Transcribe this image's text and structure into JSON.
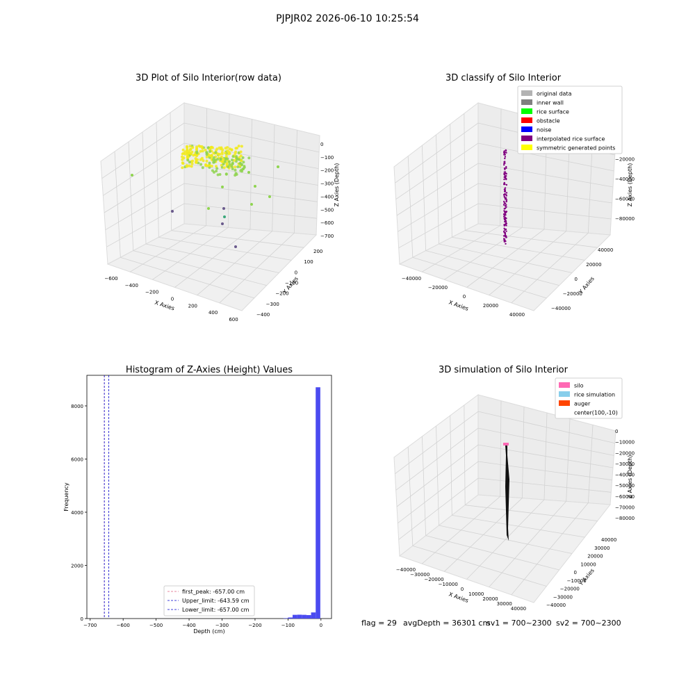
{
  "suptitle": "PJPJR02 2026-06-10 10:25:54",
  "footer": {
    "flag": "flag = 29",
    "avg": "avgDepth = 36301 cm",
    "sv1": "sv1 = 700~2300",
    "sv2": "sv2 = 700~2300"
  },
  "chart_data": [
    {
      "type": "scatter",
      "title": "3D Plot of Silo Interior(row data)",
      "xlabel": "X Axies",
      "ylabel": "Y Axies",
      "zlabel": "Z Axies (Depth)",
      "x_ticks": [
        "−600",
        "−400",
        "−200",
        "0",
        "200",
        "400",
        "600"
      ],
      "y_ticks": [
        "200",
        "100",
        "0",
        "−100",
        "−200",
        "−300",
        "−400"
      ],
      "z_ticks": [
        "0",
        "−100",
        "−200",
        "−300",
        "−400",
        "−500",
        "−600",
        "−700"
      ],
      "colors": {
        "high": "#f2ea1a",
        "mid": "#8fd44f",
        "low": "#3aa87a",
        "deep": "#6a5a8c"
      }
    },
    {
      "type": "scatter",
      "title": "3D classify of Silo Interior",
      "xlabel": "X Axies",
      "ylabel": "Y Axies",
      "zlabel": "Z Axies (Depth)",
      "x_ticks": [
        "−40000",
        "−20000",
        "0",
        "20000",
        "40000"
      ],
      "y_ticks": [
        "40000",
        "20000",
        "0",
        "−20000",
        "−40000"
      ],
      "z_ticks": [
        "0",
        "−20000",
        "−40000",
        "−60000",
        "−80000"
      ],
      "legend_position": "top-right",
      "legend": [
        {
          "label": "original data",
          "color": "#b3b3b3"
        },
        {
          "label": "inner wall",
          "color": "#808080"
        },
        {
          "label": "rice surface",
          "color": "#00ff00"
        },
        {
          "label": "obstacle",
          "color": "#ff0000"
        },
        {
          "label": "noise",
          "color": "#0000ff"
        },
        {
          "label": "interpolated rice surface",
          "color": "#800080"
        },
        {
          "label": "symmetric generated points",
          "color": "#ffff00"
        }
      ]
    },
    {
      "type": "bar",
      "title": "Histogram of Z-Axies (Height) Values",
      "xlabel": "Depth (cm)",
      "ylabel": "Frequency",
      "xlim": [
        -710,
        32
      ],
      "ylim": [
        0,
        9150
      ],
      "x_ticks": [
        -700,
        -600,
        -500,
        -400,
        -300,
        -200,
        -100,
        0
      ],
      "x_tick_labels": [
        "−700",
        "−600",
        "−500",
        "−400",
        "−300",
        "−200",
        "−100",
        "0"
      ],
      "y_ticks": [
        0,
        2000,
        4000,
        6000,
        8000
      ],
      "bar_color": "#4b4bf0",
      "bins": [
        {
          "x0": -114,
          "x1": -100,
          "count": 15
        },
        {
          "x0": -100,
          "x1": -86,
          "count": 40
        },
        {
          "x0": -86,
          "x1": -72,
          "count": 140
        },
        {
          "x0": -72,
          "x1": -58,
          "count": 145
        },
        {
          "x0": -58,
          "x1": -44,
          "count": 140
        },
        {
          "x0": -44,
          "x1": -30,
          "count": 130
        },
        {
          "x0": -30,
          "x1": -16,
          "count": 230
        },
        {
          "x0": -16,
          "x1": -2,
          "count": 8700
        }
      ],
      "vlines": [
        {
          "label": "first_peak: -657.00 cm",
          "x": -657.0,
          "color": "#e06080"
        },
        {
          "label": "Upper_limit: -643.59 cm",
          "x": -643.59,
          "color": "#0000cc"
        },
        {
          "label": "Lower_limit: -657.00 cm",
          "x": -657.0,
          "color": "#0000cc"
        }
      ],
      "legend_position": "lower-center"
    },
    {
      "type": "scatter",
      "title": "3D simulation of Silo Interior",
      "xlabel": "X Axies",
      "ylabel": "Y Axies",
      "zlabel": "Z Axies (Depth)",
      "x_ticks": [
        "−40000",
        "−30000",
        "−20000",
        "−10000",
        "0",
        "10000",
        "20000",
        "30000",
        "40000"
      ],
      "y_ticks": [
        "40000",
        "30000",
        "20000",
        "10000",
        "0",
        "−10000",
        "−20000",
        "−30000",
        "−40000"
      ],
      "z_ticks": [
        "0",
        "−10000",
        "−20000",
        "−30000",
        "−40000",
        "−50000",
        "−60000",
        "−70000",
        "−80000"
      ],
      "legend_position": "top-right",
      "legend": [
        {
          "label": "silo",
          "color": "#ff69b4"
        },
        {
          "label": "rice simulation",
          "color": "#87ceeb"
        },
        {
          "label": "auger",
          "color": "#ff4500"
        },
        {
          "label": "center(100,-10)",
          "color": ""
        }
      ]
    }
  ]
}
